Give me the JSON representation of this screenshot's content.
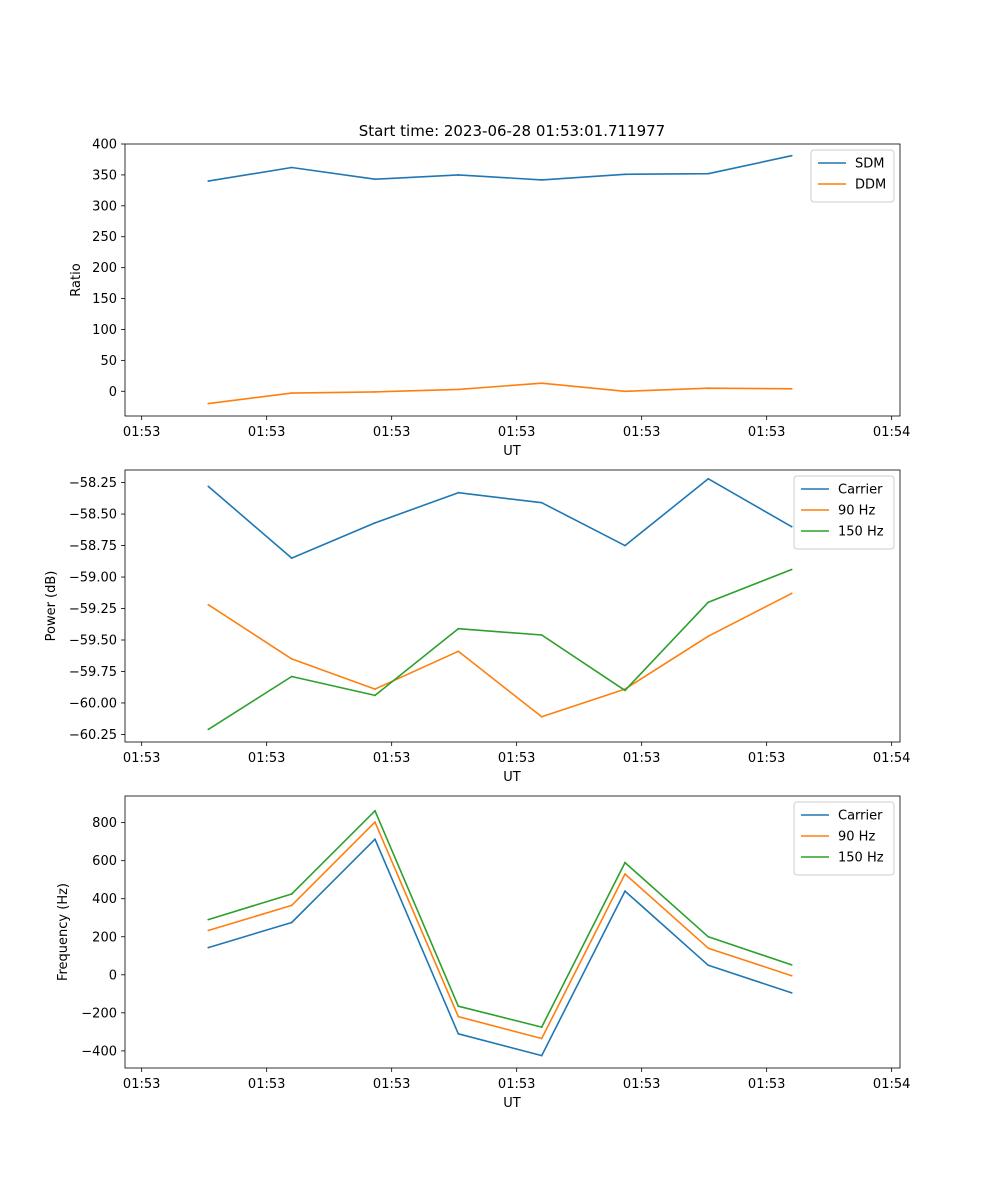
{
  "figure_title": "Start time: 2023-06-28 01:53:01.711977",
  "chart_data": [
    {
      "type": "line",
      "title": "Start time: 2023-06-28 01:53:01.711977",
      "xlabel": "UT",
      "ylabel": "Ratio",
      "x_tick_labels": [
        "01:53",
        "01:53",
        "01:53",
        "01:53",
        "01:53",
        "01:53",
        "01:54"
      ],
      "x_index": [
        1,
        2,
        3,
        4,
        5,
        6,
        7,
        8
      ],
      "xlim": [
        0,
        9.3
      ],
      "ylim": [
        -40,
        400
      ],
      "yticks": [
        0,
        50,
        100,
        150,
        200,
        250,
        300,
        350,
        400
      ],
      "legend_position": "upper right",
      "series": [
        {
          "name": "SDM",
          "color": "#1f77b4",
          "values": [
            340,
            362,
            343,
            350,
            342,
            351,
            352,
            381
          ]
        },
        {
          "name": "DDM",
          "color": "#ff7f0e",
          "values": [
            -20,
            -3,
            -1,
            3,
            13,
            0,
            5,
            4
          ]
        }
      ]
    },
    {
      "type": "line",
      "xlabel": "UT",
      "ylabel": "Power (dB)",
      "x_tick_labels": [
        "01:53",
        "01:53",
        "01:53",
        "01:53",
        "01:53",
        "01:53",
        "01:54"
      ],
      "x_index": [
        1,
        2,
        3,
        4,
        5,
        6,
        7,
        8
      ],
      "xlim": [
        0,
        9.3
      ],
      "ylim": [
        -60.31,
        -58.15
      ],
      "yticks": [
        -60.25,
        -60.0,
        -59.75,
        -59.5,
        -59.25,
        -59.0,
        -58.75,
        -58.5,
        -58.25
      ],
      "ytick_labels": [
        "−60.25",
        "−60.00",
        "−59.75",
        "−59.50",
        "−59.25",
        "−59.00",
        "−58.75",
        "−58.50",
        "−58.25"
      ],
      "legend_position": "upper right",
      "series": [
        {
          "name": "Carrier",
          "color": "#1f77b4",
          "values": [
            -58.28,
            -58.85,
            -58.57,
            -58.33,
            -58.41,
            -58.75,
            -58.22,
            -58.6
          ]
        },
        {
          "name": "90 Hz",
          "color": "#ff7f0e",
          "values": [
            -59.22,
            -59.65,
            -59.89,
            -59.59,
            -60.11,
            -59.89,
            -59.47,
            -59.13
          ]
        },
        {
          "name": "150 Hz",
          "color": "#2ca02c",
          "values": [
            -60.21,
            -59.79,
            -59.94,
            -59.41,
            -59.46,
            -59.9,
            -59.2,
            -58.94
          ]
        }
      ]
    },
    {
      "type": "line",
      "xlabel": "UT",
      "ylabel": "Frequency (Hz)",
      "x_tick_labels": [
        "01:53",
        "01:53",
        "01:53",
        "01:53",
        "01:53",
        "01:53",
        "01:54"
      ],
      "x_index": [
        1,
        2,
        3,
        4,
        5,
        6,
        7,
        8
      ],
      "xlim": [
        0,
        9.3
      ],
      "ylim": [
        -490,
        940
      ],
      "yticks": [
        -400,
        -200,
        0,
        200,
        400,
        600,
        800
      ],
      "ytick_labels": [
        "−400",
        "−200",
        "0",
        "200",
        "400",
        "600",
        "800"
      ],
      "legend_position": "upper right",
      "series": [
        {
          "name": "Carrier",
          "color": "#1f77b4",
          "values": [
            143,
            275,
            713,
            -310,
            -425,
            440,
            50,
            -95
          ]
        },
        {
          "name": "90 Hz",
          "color": "#ff7f0e",
          "values": [
            233,
            365,
            803,
            -220,
            -335,
            530,
            140,
            -5
          ]
        },
        {
          "name": "150 Hz",
          "color": "#2ca02c",
          "values": [
            290,
            425,
            862,
            -165,
            -275,
            590,
            200,
            52
          ]
        }
      ]
    }
  ]
}
